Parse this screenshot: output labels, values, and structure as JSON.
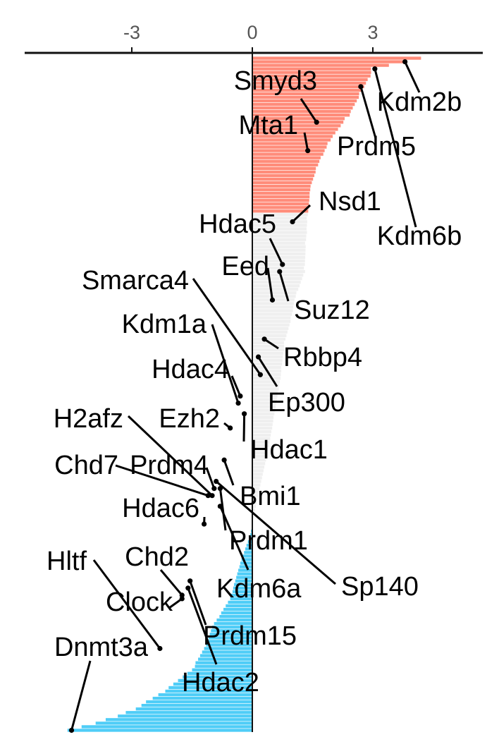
{
  "chart_data": {
    "type": "bar",
    "orientation": "horizontal",
    "title": "",
    "xlabel": "",
    "ylabel": "",
    "xlim": [
      -5.9,
      5.5
    ],
    "x_ticks": [
      {
        "value": -3,
        "label": "-3"
      },
      {
        "value": 0,
        "label": "0"
      },
      {
        "value": 3,
        "label": "3"
      }
    ],
    "grid": false,
    "legend": "none",
    "colors": {
      "up": "#FF8C7A",
      "neutral": "#EFEFEF",
      "down": "#4FCDF7",
      "label": "#000000",
      "axis": "#111111"
    },
    "n_bars": 190,
    "profile_knots": [
      [
        0,
        4.2
      ],
      [
        3,
        3.0
      ],
      [
        10,
        2.7
      ],
      [
        16,
        2.4
      ],
      [
        22,
        2.0
      ],
      [
        28,
        1.7
      ],
      [
        36,
        1.45
      ],
      [
        48,
        1.35
      ],
      [
        60,
        1.3
      ],
      [
        68,
        1.05
      ],
      [
        74,
        0.95
      ],
      [
        80,
        0.8
      ],
      [
        90,
        0.7
      ],
      [
        100,
        0.55
      ],
      [
        110,
        0.4
      ],
      [
        120,
        0.2
      ],
      [
        128,
        0.05
      ],
      [
        134,
        -0.05
      ],
      [
        142,
        -0.3
      ],
      [
        152,
        -0.55
      ],
      [
        160,
        -1.0
      ],
      [
        165,
        -1.15
      ],
      [
        172,
        -1.5
      ],
      [
        178,
        -2.2
      ],
      [
        183,
        -2.9
      ],
      [
        187,
        -3.9
      ],
      [
        189,
        -4.6
      ]
    ],
    "category_thresholds": {
      "up_end": 44,
      "neutral_end": 132
    },
    "genes": [
      {
        "name": "Kdm2b",
        "rank": 1,
        "value": 3.8
      },
      {
        "name": "Kdm6b",
        "rank": 3,
        "value": 3.05
      },
      {
        "name": "Prdm5",
        "rank": 8,
        "value": 2.7
      },
      {
        "name": "Smyd3",
        "rank": 18,
        "value": 1.6
      },
      {
        "name": "Mta1",
        "rank": 26,
        "value": 1.38
      },
      {
        "name": "Nsd1",
        "rank": 46,
        "value": 1.0
      },
      {
        "name": "Hdac5",
        "rank": 58,
        "value": 0.75
      },
      {
        "name": "Suz12",
        "rank": 60,
        "value": 0.68
      },
      {
        "name": "Eed",
        "rank": 68,
        "value": 0.5
      },
      {
        "name": "Rbbp4",
        "rank": 79,
        "value": 0.3
      },
      {
        "name": "Ep300",
        "rank": 84,
        "value": 0.15
      },
      {
        "name": "Smarca4",
        "rank": 89,
        "value": 0.2
      },
      {
        "name": "Kdm1a",
        "rank": 97,
        "value": -0.35
      },
      {
        "name": "Hdac4",
        "rank": 95,
        "value": -0.3
      },
      {
        "name": "Hdac1",
        "rank": 100,
        "value": -0.2
      },
      {
        "name": "Ezh2",
        "rank": 104,
        "value": -0.55
      },
      {
        "name": "Bmi1",
        "rank": 113,
        "value": -0.7
      },
      {
        "name": "Prdm1",
        "rank": 121,
        "value": -0.8
      },
      {
        "name": "Sp140",
        "rank": 119,
        "value": -0.9
      },
      {
        "name": "Prdm4",
        "rank": 121,
        "value": -0.95
      },
      {
        "name": "H2afz",
        "rank": 123,
        "value": -1.0
      },
      {
        "name": "Chd7",
        "rank": 123,
        "value": -1.1
      },
      {
        "name": "Kdm6a",
        "rank": 126,
        "value": -0.8
      },
      {
        "name": "Hdac6",
        "rank": 131,
        "value": -1.2
      },
      {
        "name": "Prdm15",
        "rank": 147,
        "value": -1.55
      },
      {
        "name": "Hdac2",
        "rank": 149,
        "value": -1.6
      },
      {
        "name": "Chd2",
        "rank": 151,
        "value": -1.75
      },
      {
        "name": "Clock",
        "rank": 152,
        "value": -1.75
      },
      {
        "name": "Hltf",
        "rank": 166,
        "value": -2.3
      },
      {
        "name": "Dnmt3a",
        "rank": 189,
        "value": -4.5
      }
    ]
  }
}
